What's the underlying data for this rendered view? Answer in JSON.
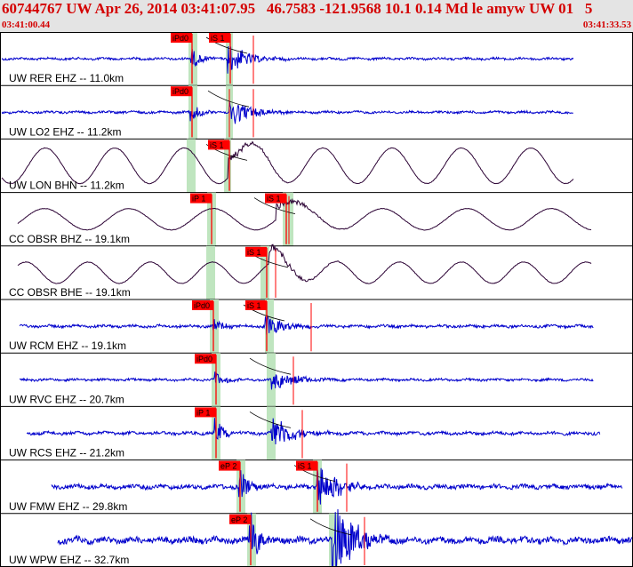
{
  "header": {
    "title": "60744767 UW Apr 26, 2014 03:41:07.95   46.7583 -121.9568 10.1 0.14 Md le amyw UW 01   5",
    "start_time": "03:41:00.44",
    "end_time": "03:41:33.53"
  },
  "colors": {
    "hp": "#0000cc",
    "lp": "#2a0033",
    "pick": "#ff0000",
    "window": "#bfe5bf",
    "grid": "#000000",
    "header_bg": "#e4e4e4",
    "text_red": "#d40000"
  },
  "traces": [
    {
      "label": "UW RER EHZ -- 11.0km",
      "style": "hp",
      "amp": 4,
      "noise": 1.2,
      "picks": [
        {
          "t": "iPd0",
          "kind": "p"
        },
        {
          "t": "iS 1",
          "kind": "s"
        }
      ]
    },
    {
      "label": "UW LO2 EHZ -- 11.2km",
      "style": "hp",
      "amp": 4,
      "noise": 1.2,
      "picks": [
        {
          "t": "iPd0",
          "kind": "p"
        }
      ]
    },
    {
      "label": "UW LON BHN -- 11.2km",
      "style": "lp",
      "amp": 20,
      "noise": 0.6,
      "picks": [
        {
          "t": "iS 1",
          "kind": "s"
        }
      ]
    },
    {
      "label": "CC OBSR BHZ -- 19.1km",
      "style": "lp",
      "amp": 12,
      "noise": 0.6,
      "picks": [
        {
          "t": "iP 1",
          "kind": "p"
        },
        {
          "t": "iS 1",
          "kind": "s"
        }
      ]
    },
    {
      "label": "CC OBSR BHE -- 19.1km",
      "style": "lp",
      "amp": 12,
      "noise": 0.6,
      "picks": [
        {
          "t": "iS 1",
          "kind": "s"
        }
      ]
    },
    {
      "label": "UW RCM EHZ -- 19.1km",
      "style": "hp",
      "amp": 3,
      "noise": 1.4,
      "picks": [
        {
          "t": "iPd0",
          "kind": "p"
        },
        {
          "t": "iS 1",
          "kind": "s"
        }
      ]
    },
    {
      "label": "UW RVC EHZ -- 20.7km",
      "style": "hp",
      "amp": 3,
      "noise": 1.2,
      "picks": [
        {
          "t": "iPd0",
          "kind": "p"
        }
      ]
    },
    {
      "label": "UW RCS EHZ -- 21.2km",
      "style": "hp",
      "amp": 5,
      "noise": 1.6,
      "picks": [
        {
          "t": "iP 1",
          "kind": "p"
        }
      ]
    },
    {
      "label": "UW FMW EHZ -- 29.8km",
      "style": "hp",
      "amp": 7,
      "noise": 2.2,
      "picks": [
        {
          "t": "eP 2",
          "kind": "p"
        },
        {
          "t": "iS 1",
          "kind": "s"
        }
      ]
    },
    {
      "label": "UW WPW EHZ -- 32.7km",
      "style": "hp",
      "amp": 12,
      "noise": 3.2,
      "picks": [
        {
          "t": "eP 2",
          "kind": "p"
        }
      ]
    }
  ]
}
